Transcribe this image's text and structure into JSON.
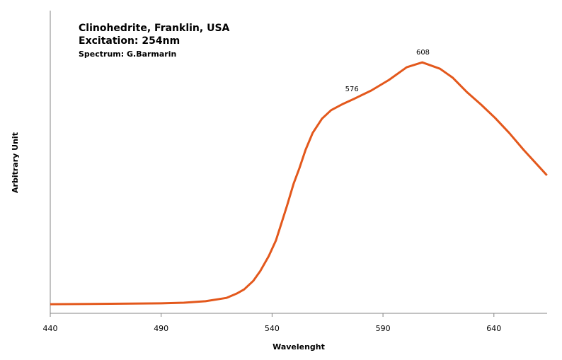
{
  "chart_data": {
    "type": "line",
    "title": "Clinohedrite, Franklin, USA",
    "subtitle": "Excitation: 254nm",
    "credit": "Spectrum: G.Barmarin",
    "x_label": "Wavelenght",
    "y_label": "Arbitrary Unit",
    "xlim": [
      440,
      664
    ],
    "ylim": [
      0,
      100
    ],
    "xticks": [
      440,
      490,
      540,
      590,
      640
    ],
    "series": [
      {
        "name": "Clinohedrite",
        "color": "#e3581c",
        "x": [
          440,
          490,
          500.2,
          510,
          519.5,
          524,
          527.4,
          531.5,
          534.7,
          538.5,
          541.7,
          544.2,
          546.8,
          549.7,
          552.3,
          555.1,
          558.3,
          562.5,
          566.6,
          572,
          576.8,
          584.7,
          592.7,
          600.7,
          607.7,
          615.7,
          621.5,
          627.8,
          634.3,
          640.6,
          646.9,
          653.4,
          663.9
        ],
        "values": [
          3.0,
          3.3,
          3.5,
          4.0,
          5.1,
          6.5,
          7.9,
          10.7,
          14,
          18.9,
          24,
          29.7,
          35.7,
          42.8,
          47.9,
          54,
          59.6,
          64.3,
          67.1,
          69.2,
          70.8,
          73.6,
          77.1,
          81.3,
          82.9,
          80.8,
          77.8,
          73.1,
          68.9,
          64.5,
          59.6,
          54,
          45.6
        ]
      }
    ],
    "annotations": [
      {
        "text": "576",
        "x": 576,
        "y": 70.8
      },
      {
        "text": "608",
        "x": 608,
        "y": 82.9
      }
    ]
  }
}
